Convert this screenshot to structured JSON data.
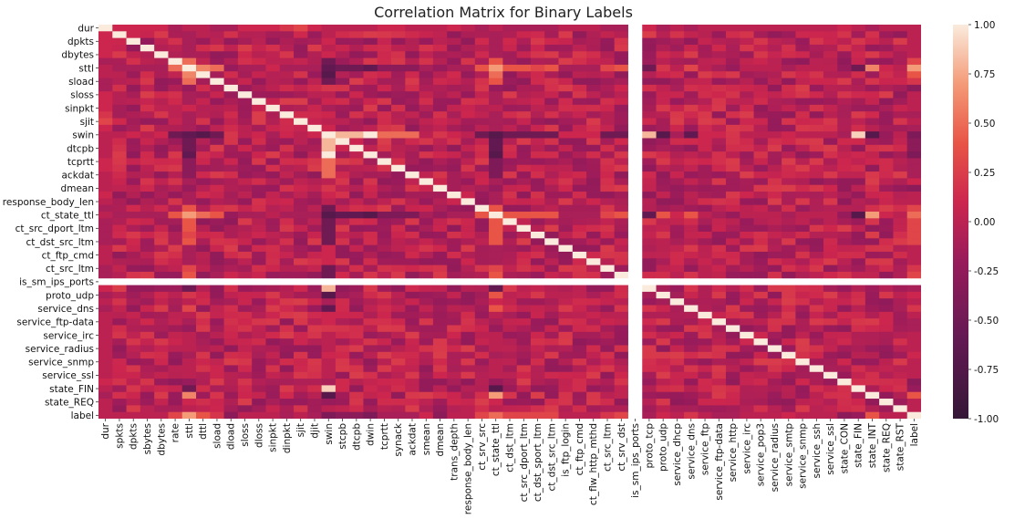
{
  "chart_data": {
    "type": "heatmap",
    "title": "Correlation Matrix for Binary Labels",
    "xlabel": "",
    "ylabel": "",
    "x_tick_labels": [
      "dur",
      "spkts",
      "dpkts",
      "sbytes",
      "dbytes",
      "rate",
      "sttl",
      "dttl",
      "sload",
      "dload",
      "sloss",
      "dloss",
      "sinpkt",
      "dinpkt",
      "sjit",
      "djit",
      "swin",
      "stcpb",
      "dtcpb",
      "dwin",
      "tcprtt",
      "synack",
      "ackdat",
      "smean",
      "dmean",
      "trans_depth",
      "response_body_len",
      "ct_srv_src",
      "ct_state_ttl",
      "ct_dst_ltm",
      "ct_src_dport_ltm",
      "ct_dst_sport_ltm",
      "ct_dst_src_ltm",
      "is_ftp_login",
      "ct_ftp_cmd",
      "ct_flw_http_mthd",
      "ct_src_ltm",
      "ct_srv_dst",
      "is_sm_ips_ports",
      "proto_tcp",
      "proto_udp",
      "service_dhcp",
      "service_dns",
      "service_ftp",
      "service_ftp-data",
      "service_http",
      "service_irc",
      "service_pop3",
      "service_radius",
      "service_smtp",
      "service_snmp",
      "service_ssh",
      "service_ssl",
      "state_CON",
      "state_FIN",
      "state_INT",
      "state_REQ",
      "state_RST",
      "label"
    ],
    "y_tick_labels": [
      "dur",
      "dpkts",
      "dbytes",
      "sttl",
      "sload",
      "sloss",
      "sinpkt",
      "sjit",
      "swin",
      "dtcpb",
      "tcprtt",
      "ackdat",
      "dmean",
      "response_body_len",
      "ct_state_ttl",
      "ct_src_dport_ltm",
      "ct_dst_src_ltm",
      "ct_ftp_cmd",
      "ct_src_ltm",
      "is_sm_ips_ports",
      "proto_udp",
      "service_dns",
      "service_ftp-data",
      "service_irc",
      "service_radius",
      "service_snmp",
      "service_ssl",
      "state_FIN",
      "state_REQ",
      "label"
    ],
    "value_range": [
      -1.0,
      1.0
    ],
    "colorbar": {
      "ticks": [
        "-1.00",
        "-0.75",
        "-0.50",
        "-0.25",
        "0.00",
        "0.25",
        "0.50",
        "0.75",
        "1.00"
      ],
      "tick_values": [
        -1.0,
        -0.75,
        -0.5,
        -0.25,
        0.0,
        0.25,
        0.5,
        0.75,
        1.0
      ]
    },
    "colormap": "rocket",
    "grid": false,
    "legend": "colorbar-right",
    "rows": [
      {
        "name": "dur",
        "row": 0,
        "values": [
          1.0,
          0.1,
          0.1,
          0.1,
          0.1,
          -0.1,
          0.0,
          0.0,
          -0.1,
          -0.1,
          0.1,
          0.1,
          0.1,
          0.2,
          0.3,
          0.1,
          0.0,
          0.0,
          0.0,
          0.0,
          0.1,
          0.1,
          0.0,
          0.0,
          0.0,
          0.1,
          0.0,
          -0.1,
          0.0,
          -0.1,
          -0.1,
          -0.1,
          -0.1,
          0.0,
          0.0,
          0.0,
          -0.1,
          -0.1,
          null,
          0.1,
          -0.1,
          0.0,
          -0.1,
          0.0,
          0.0,
          0.0,
          0.0,
          0.0,
          0.0,
          0.0,
          0.0,
          0.0,
          0.0,
          0.1,
          0.0,
          -0.1,
          0.0,
          0.0,
          0.0
        ]
      },
      {
        "name": "sttl",
        "row": 6,
        "values": [
          0.0,
          -0.1,
          -0.1,
          -0.1,
          -0.1,
          0.5,
          1.0,
          0.6,
          0.5,
          -0.2,
          -0.1,
          -0.1,
          0.1,
          -0.1,
          -0.1,
          -0.1,
          -0.6,
          -0.5,
          -0.5,
          -0.6,
          -0.3,
          -0.3,
          -0.3,
          -0.1,
          -0.2,
          -0.1,
          -0.1,
          0.4,
          0.7,
          0.4,
          0.4,
          0.3,
          0.4,
          -0.1,
          -0.1,
          -0.1,
          0.3,
          0.4,
          null,
          -0.5,
          0.2,
          0.0,
          0.3,
          0.0,
          -0.1,
          -0.2,
          0.0,
          0.0,
          0.0,
          -0.1,
          0.0,
          0.0,
          0.0,
          -0.2,
          -0.5,
          0.6,
          0.1,
          0.0,
          0.7
        ]
      },
      {
        "name": "swin",
        "row": 16,
        "values": [
          0.0,
          0.0,
          0.1,
          0.0,
          0.1,
          -0.5,
          -0.6,
          -0.7,
          -0.5,
          0.2,
          0.0,
          0.1,
          -0.1,
          0.1,
          0.0,
          0.1,
          1.0,
          0.8,
          0.8,
          1.0,
          0.5,
          0.5,
          0.5,
          0.0,
          0.2,
          0.1,
          0.0,
          -0.5,
          -0.7,
          -0.5,
          -0.5,
          -0.5,
          -0.5,
          0.1,
          0.1,
          0.1,
          -0.5,
          -0.5,
          null,
          0.8,
          -0.7,
          -0.1,
          -0.6,
          0.1,
          0.1,
          0.2,
          0.0,
          0.0,
          0.0,
          0.1,
          0.0,
          0.0,
          0.0,
          -0.1,
          0.9,
          -0.7,
          -0.2,
          0.0,
          -0.4
        ]
      },
      {
        "name": "ct_state_ttl",
        "row": 28,
        "values": [
          0.0,
          -0.1,
          -0.1,
          -0.1,
          -0.1,
          0.4,
          0.7,
          0.5,
          0.4,
          -0.2,
          -0.1,
          -0.1,
          0.0,
          -0.1,
          -0.1,
          -0.1,
          -0.7,
          -0.6,
          -0.6,
          -0.7,
          -0.4,
          -0.4,
          -0.4,
          -0.1,
          -0.2,
          -0.1,
          -0.1,
          0.4,
          1.0,
          0.4,
          0.4,
          0.4,
          0.4,
          -0.1,
          -0.1,
          -0.1,
          0.3,
          0.4,
          null,
          -0.6,
          0.4,
          0.1,
          0.4,
          0.0,
          -0.1,
          -0.2,
          0.0,
          0.0,
          0.0,
          -0.1,
          0.0,
          0.0,
          0.0,
          -0.2,
          -0.7,
          0.7,
          0.1,
          0.0,
          0.5
        ]
      },
      {
        "name": "label",
        "row": 58,
        "values": [
          0.0,
          0.0,
          0.0,
          0.0,
          0.0,
          0.3,
          0.7,
          0.4,
          0.2,
          -0.3,
          0.0,
          0.0,
          0.0,
          -0.1,
          0.0,
          -0.1,
          -0.4,
          -0.3,
          -0.3,
          -0.4,
          -0.1,
          -0.1,
          -0.1,
          0.1,
          -0.3,
          0.0,
          0.0,
          0.3,
          0.5,
          0.3,
          0.3,
          0.3,
          0.3,
          0.0,
          0.0,
          0.0,
          0.2,
          0.3,
          null,
          -0.1,
          0.1,
          0.0,
          0.2,
          0.0,
          -0.1,
          -0.1,
          0.0,
          0.0,
          0.0,
          0.1,
          0.0,
          0.0,
          0.0,
          -0.3,
          -0.2,
          0.4,
          0.0,
          0.0,
          1.0
        ]
      }
    ],
    "notes_visible": []
  }
}
